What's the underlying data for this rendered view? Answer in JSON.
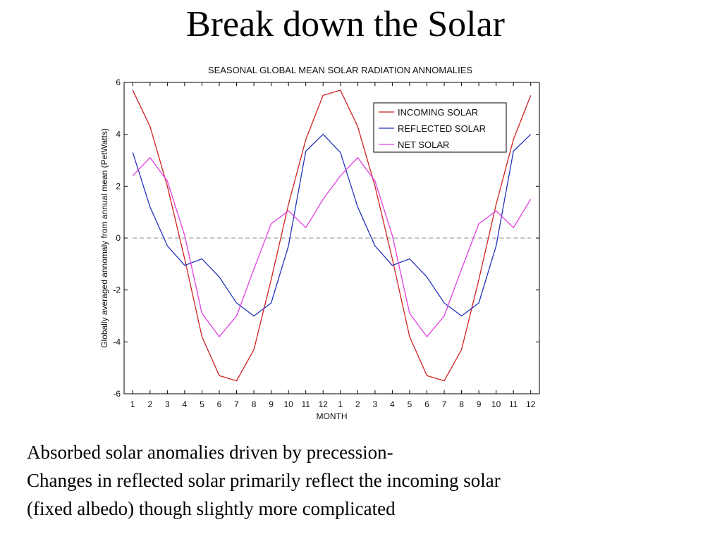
{
  "slide": {
    "title": "Break down the Solar",
    "caption_lines": [
      "Absorbed solar  anomalies driven by precession-",
      "Changes in reflected solar primarily reflect the incoming solar",
      "(fixed albedo) though slightly more complicated"
    ]
  },
  "chart_data": {
    "type": "line",
    "title": "SEASONAL GLOBAL MEAN SOLAR RADIATION ANNOMALIES",
    "xlabel": "MONTH",
    "ylabel": "Globally averaged annomaly from annual mean (PetWatts)",
    "x": [
      1,
      2,
      3,
      4,
      5,
      6,
      7,
      8,
      9,
      10,
      11,
      12,
      13,
      14,
      15,
      16,
      17,
      18,
      19,
      20,
      21,
      22,
      23,
      24
    ],
    "x_tick_labels": [
      "1",
      "2",
      "3",
      "4",
      "5",
      "6",
      "7",
      "8",
      "9",
      "10",
      "11",
      "12",
      "1",
      "2",
      "3",
      "4",
      "5",
      "6",
      "7",
      "8",
      "9",
      "10",
      "11",
      "12"
    ],
    "ylim": [
      -6,
      6
    ],
    "xlim": [
      0.5,
      24.5
    ],
    "y_ticks": [
      -6,
      -4,
      -2,
      0,
      2,
      4,
      6
    ],
    "grid": false,
    "zero_line": true,
    "legend_position": "top-right",
    "series": [
      {
        "name": "INCOMING SOLAR",
        "color": "#cc2222",
        "values": [
          5.7,
          4.3,
          2.0,
          -0.8,
          -3.8,
          -5.3,
          -5.5,
          -4.3,
          -1.6,
          1.3,
          3.8,
          5.5,
          5.7,
          4.3,
          2.0,
          -0.8,
          -3.8,
          -5.3,
          -5.5,
          -4.3,
          -1.6,
          1.3,
          3.8,
          5.5
        ]
      },
      {
        "name": "REFLECTED SOLAR",
        "color": "#2233bb",
        "values": [
          3.3,
          1.2,
          -0.3,
          -1.05,
          -0.8,
          -1.5,
          -2.5,
          -3.0,
          -2.5,
          -0.3,
          3.35,
          4.0,
          3.3,
          1.2,
          -0.3,
          -1.05,
          -0.8,
          -1.5,
          -2.5,
          -3.0,
          -2.5,
          -0.3,
          3.35,
          4.0
        ]
      },
      {
        "name": "NET SOLAR",
        "color": "#e040e0",
        "values": [
          2.4,
          3.1,
          2.2,
          0.1,
          -2.9,
          -3.8,
          -3.0,
          -1.2,
          0.55,
          1.05,
          0.4,
          1.5,
          2.4,
          3.1,
          2.2,
          0.1,
          -2.9,
          -3.8,
          -3.0,
          -1.2,
          0.55,
          1.05,
          0.4,
          1.5
        ]
      }
    ]
  }
}
